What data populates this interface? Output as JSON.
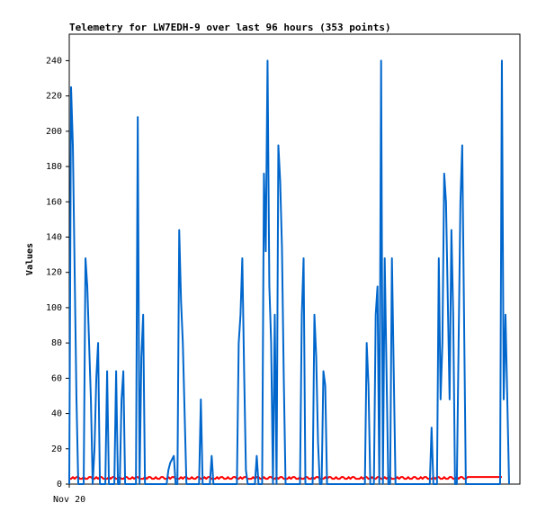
{
  "chart_data": {
    "type": "line",
    "title": "Telemetry for LW7EDH-9 over last 96 hours (353 points)",
    "ylabel": "Values",
    "categories": [
      "Nov 20",
      null,
      null,
      null,
      null,
      null,
      null,
      null,
      null,
      null,
      null,
      null,
      null,
      null,
      null,
      null,
      null,
      null,
      null,
      null,
      null,
      null,
      null,
      null,
      null,
      null,
      null,
      null,
      null,
      null,
      null,
      null,
      null,
      null,
      null,
      null,
      null,
      null,
      null,
      null,
      null,
      null,
      null,
      null,
      null,
      null,
      null,
      null,
      null,
      null,
      null,
      null,
      null,
      null,
      null,
      null,
      null,
      null,
      null,
      null,
      null,
      null,
      null,
      null,
      null,
      null,
      null,
      null,
      null,
      null,
      null,
      null,
      null,
      null,
      null,
      null,
      null,
      null,
      null,
      null,
      null,
      null,
      null,
      null,
      null,
      null,
      null,
      null,
      null,
      null,
      null,
      null,
      null,
      null,
      null,
      null,
      null,
      null,
      null,
      null,
      null,
      null,
      null,
      null,
      null,
      null,
      null,
      null,
      null,
      null,
      null,
      null,
      null,
      null,
      null,
      null,
      null,
      null,
      null,
      null,
      null,
      null,
      null,
      null,
      null,
      null,
      null,
      null,
      null,
      null,
      null,
      null,
      null,
      null,
      null,
      null,
      null,
      null,
      null,
      null,
      null,
      null,
      null,
      null,
      null,
      null,
      null,
      null,
      null,
      null,
      null,
      null,
      null,
      null,
      null,
      null,
      null,
      null,
      null,
      null,
      null,
      null,
      null,
      null,
      null,
      null,
      null,
      null,
      null,
      null,
      null,
      null,
      null,
      null,
      null,
      null,
      null,
      null,
      null,
      null,
      null,
      null,
      null,
      null,
      null,
      null,
      null,
      null,
      null,
      null,
      null,
      null,
      null,
      null,
      null,
      null,
      null,
      null,
      null,
      null,
      null,
      null,
      null,
      null,
      null,
      null,
      null,
      null,
      null,
      null,
      null,
      null,
      null,
      null,
      null,
      null,
      null,
      null,
      null,
      null,
      null,
      null,
      null,
      null,
      null,
      null,
      null,
      null,
      null,
      null,
      null,
      null,
      null,
      null,
      null,
      null,
      null,
      null,
      null,
      null,
      null,
      null,
      null,
      null,
      null,
      null,
      null,
      null,
      null,
      null
    ],
    "series": [
      {
        "color": "#ff0000",
        "values": [
          3,
          3,
          4,
          3,
          4,
          4,
          3,
          3,
          4,
          3,
          3,
          4,
          4,
          3,
          3,
          4,
          3,
          4,
          4,
          3,
          3,
          3,
          4,
          3,
          4,
          4,
          3,
          3,
          4,
          3,
          3,
          4,
          4,
          3,
          3,
          4,
          3,
          4,
          4,
          3,
          3,
          3,
          4,
          3,
          4,
          4,
          3,
          3,
          4,
          3,
          3,
          4,
          4,
          3,
          3,
          4,
          3,
          4,
          4,
          3,
          3,
          3,
          4,
          3,
          4,
          4,
          3,
          3,
          4,
          3,
          3,
          4,
          4,
          3,
          3,
          4,
          3,
          4,
          4,
          3,
          3,
          3,
          4,
          3,
          4,
          4,
          3,
          3,
          4,
          3,
          3,
          4,
          4,
          3,
          3,
          4,
          3,
          4,
          4,
          3,
          3,
          3,
          4,
          3,
          4,
          4,
          3,
          3,
          4,
          3,
          3,
          4,
          4,
          3,
          3,
          4,
          3,
          4,
          4,
          3,
          3,
          3,
          4,
          3,
          4,
          4,
          3,
          3,
          4,
          3,
          3,
          4,
          4,
          3,
          3,
          4,
          3,
          4,
          4,
          3,
          3,
          3,
          4,
          3,
          4,
          4,
          3,
          3,
          4,
          3,
          3,
          4,
          4,
          3,
          3,
          4,
          3,
          4,
          4,
          3,
          3,
          3,
          4,
          3,
          4,
          4,
          3,
          3,
          4,
          3,
          3,
          4,
          4,
          3,
          3,
          4,
          3,
          4,
          4,
          3,
          3,
          3,
          4,
          3,
          4,
          4,
          3,
          3,
          4,
          3,
          3,
          4,
          4,
          3,
          3,
          4,
          3,
          4,
          4,
          3,
          3,
          3,
          4,
          3,
          4,
          4,
          3,
          3,
          4,
          3,
          3,
          4,
          4,
          3,
          3,
          4,
          3,
          4,
          4,
          3,
          3,
          4,
          4,
          4,
          4,
          4,
          4,
          4,
          4,
          4,
          4,
          4,
          4,
          4,
          4,
          4,
          4,
          4,
          4,
          4,
          4,
          null,
          null,
          null,
          null,
          null,
          null,
          null,
          null,
          null
        ]
      },
      {
        "color": "#0066cc",
        "values": [
          0,
          225,
          192,
          120,
          48,
          0,
          0,
          0,
          0,
          128,
          112,
          80,
          48,
          0,
          20,
          60,
          80,
          0,
          0,
          0,
          0,
          64,
          0,
          0,
          0,
          0,
          64,
          0,
          0,
          48,
          64,
          0,
          0,
          0,
          0,
          0,
          0,
          0,
          208,
          0,
          72,
          96,
          0,
          0,
          0,
          0,
          0,
          0,
          0,
          0,
          0,
          0,
          0,
          0,
          0,
          8,
          12,
          14,
          16,
          0,
          0,
          144,
          104,
          80,
          40,
          0,
          0,
          0,
          0,
          0,
          0,
          0,
          0,
          48,
          0,
          0,
          0,
          0,
          0,
          16,
          0,
          0,
          0,
          0,
          0,
          0,
          0,
          0,
          0,
          0,
          0,
          0,
          0,
          0,
          80,
          96,
          128,
          64,
          8,
          0,
          0,
          0,
          0,
          0,
          16,
          0,
          0,
          0,
          176,
          132,
          240,
          112,
          80,
          0,
          96,
          0,
          192,
          172,
          134,
          60,
          0,
          0,
          0,
          0,
          0,
          0,
          0,
          0,
          0,
          96,
          128,
          0,
          0,
          0,
          0,
          0,
          96,
          72,
          24,
          0,
          0,
          64,
          56,
          0,
          0,
          0,
          0,
          0,
          0,
          0,
          0,
          0,
          0,
          0,
          0,
          0,
          0,
          0,
          0,
          0,
          0,
          0,
          0,
          0,
          0,
          80,
          56,
          0,
          0,
          0,
          96,
          112,
          0,
          240,
          0,
          128,
          64,
          0,
          0,
          128,
          64,
          0,
          0,
          0,
          0,
          0,
          0,
          0,
          0,
          0,
          0,
          0,
          0,
          0,
          0,
          0,
          0,
          0,
          0,
          0,
          0,
          32,
          0,
          0,
          0,
          128,
          48,
          80,
          176,
          160,
          104,
          48,
          144,
          96,
          0,
          0,
          80,
          160,
          192,
          96,
          0,
          0,
          0,
          0,
          0,
          0,
          0,
          0,
          0,
          0,
          0,
          0,
          0,
          0,
          0,
          0,
          0,
          0,
          0,
          0,
          240,
          48,
          96,
          48,
          0,
          null,
          null,
          null,
          null,
          null
        ]
      }
    ],
    "ylim": [
      0,
      255
    ],
    "yticks": [
      0,
      20,
      40,
      60,
      80,
      100,
      120,
      140,
      160,
      180,
      200,
      220,
      240
    ]
  }
}
